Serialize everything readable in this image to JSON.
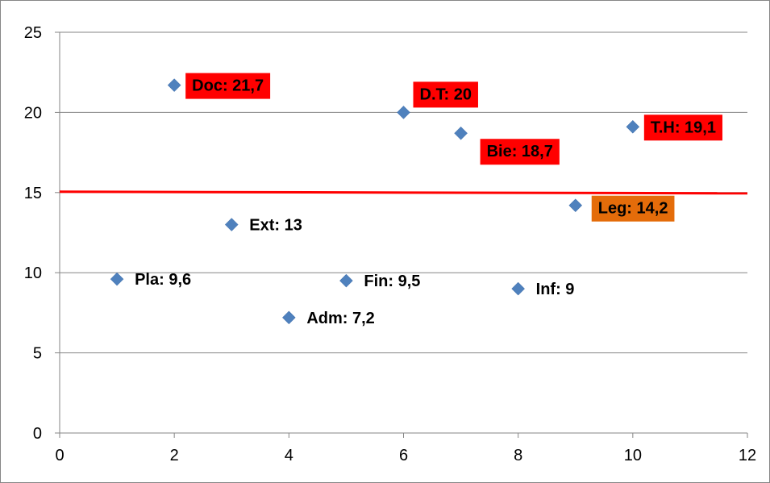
{
  "chart_data": {
    "type": "scatter",
    "title": "",
    "xlabel": "",
    "ylabel": "",
    "xlim": [
      0,
      12
    ],
    "ylim": [
      0,
      25
    ],
    "x_ticks": [
      0,
      2,
      4,
      6,
      8,
      10,
      12
    ],
    "y_ticks": [
      0,
      5,
      10,
      15,
      20,
      25
    ],
    "grid": "horizontal",
    "legend": "none",
    "marker": "diamond",
    "marker_color": "#4f81bd",
    "points": [
      {
        "x": 1,
        "y": 9.6,
        "label": "Pla: 9,6",
        "highlight": "none"
      },
      {
        "x": 2,
        "y": 21.7,
        "label": "Doc: 21,7",
        "highlight": "red"
      },
      {
        "x": 3,
        "y": 13,
        "label": "Ext: 13",
        "highlight": "none"
      },
      {
        "x": 4,
        "y": 7.2,
        "label": "Adm: 7,2",
        "highlight": "none"
      },
      {
        "x": 5,
        "y": 9.5,
        "label": "Fin: 9,5",
        "highlight": "none"
      },
      {
        "x": 6,
        "y": 20,
        "label": "D.T: 20",
        "highlight": "red"
      },
      {
        "x": 7,
        "y": 18.7,
        "label": "Bie: 18,7",
        "highlight": "red"
      },
      {
        "x": 8,
        "y": 9,
        "label": "Inf: 9",
        "highlight": "none"
      },
      {
        "x": 9,
        "y": 14.2,
        "label": "Leg: 14,2",
        "highlight": "orange"
      },
      {
        "x": 10,
        "y": 19.1,
        "label": "T.H: 19,1",
        "highlight": "red"
      }
    ],
    "threshold_line": {
      "from": [
        0,
        15.05
      ],
      "to": [
        12,
        14.95
      ],
      "color": "#ff0000"
    },
    "colors": {
      "red": "#ff0000",
      "orange": "#e46c0a",
      "grid": "#868686",
      "axis": "#868686"
    }
  }
}
